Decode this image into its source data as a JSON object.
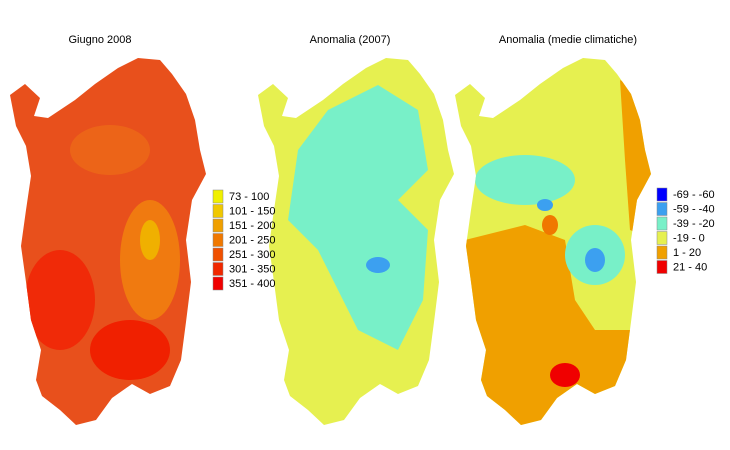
{
  "panels": [
    {
      "title": "Giugno 2008",
      "legend": [
        {
          "label": "73 - 100",
          "color": "#f0f000"
        },
        {
          "label": "101 - 150",
          "color": "#f0c800"
        },
        {
          "label": "151 - 200",
          "color": "#f0a000"
        },
        {
          "label": "201 - 250",
          "color": "#f07800"
        },
        {
          "label": "251 - 300",
          "color": "#f05000"
        },
        {
          "label": "301 - 350",
          "color": "#f02800"
        },
        {
          "label": "351 - 400",
          "color": "#f00000"
        }
      ]
    },
    {
      "title": "Anomalia (2007)",
      "legend": []
    },
    {
      "title": "Anomalia (medie climatiche)",
      "legend": [
        {
          "label": "-69 - -60",
          "color": "#0000ff"
        },
        {
          "label": "-59 - -40",
          "color": "#3ca0f0"
        },
        {
          "label": "-39 - -20",
          "color": "#78f0c8"
        },
        {
          "label": "-19 - 0",
          "color": "#e6f050"
        },
        {
          "label": "1 - 20",
          "color": "#f0a000"
        },
        {
          "label": "21 - 40",
          "color": "#f00000"
        }
      ]
    }
  ]
}
